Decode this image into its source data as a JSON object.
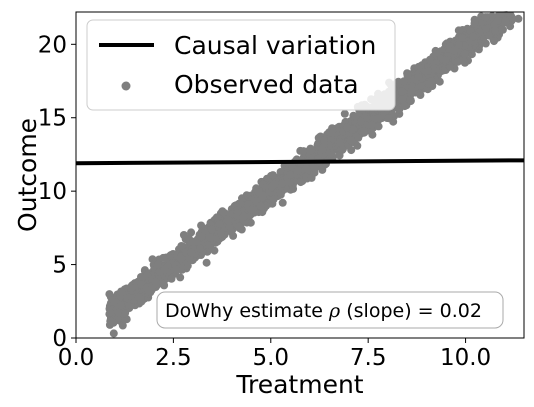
{
  "chart_data": {
    "type": "scatter",
    "xlabel": "Treatment",
    "ylabel": "Outcome",
    "xlim": [
      0,
      11.5
    ],
    "ylim": [
      0,
      22.2
    ],
    "xticks": [
      "0.0",
      "2.5",
      "5.0",
      "7.5",
      "10.0"
    ],
    "xtick_values": [
      0,
      2.5,
      5,
      7.5,
      10
    ],
    "yticks": [
      "0",
      "5",
      "10",
      "15",
      "20"
    ],
    "ytick_values": [
      0,
      5,
      10,
      15,
      20
    ],
    "grid": false,
    "legend_position": "top-left",
    "series": [
      {
        "name": "Causal variation",
        "kind": "line",
        "color": "#000000",
        "x": [
          0,
          11.5
        ],
        "y": [
          11.9,
          12.1
        ]
      },
      {
        "name": "Observed data",
        "kind": "scatter",
        "color": "#7f7f7f",
        "x_range": [
          0.85,
          11.4
        ],
        "trend_intercept": 0.0,
        "trend_slope": 2.0,
        "spread": 0.85
      }
    ],
    "annotation": {
      "text_prefix": "DoWhy estimate ",
      "symbol": "ρ",
      "text_suffix": " (slope) = 0.02",
      "position": "bottom-right"
    }
  }
}
